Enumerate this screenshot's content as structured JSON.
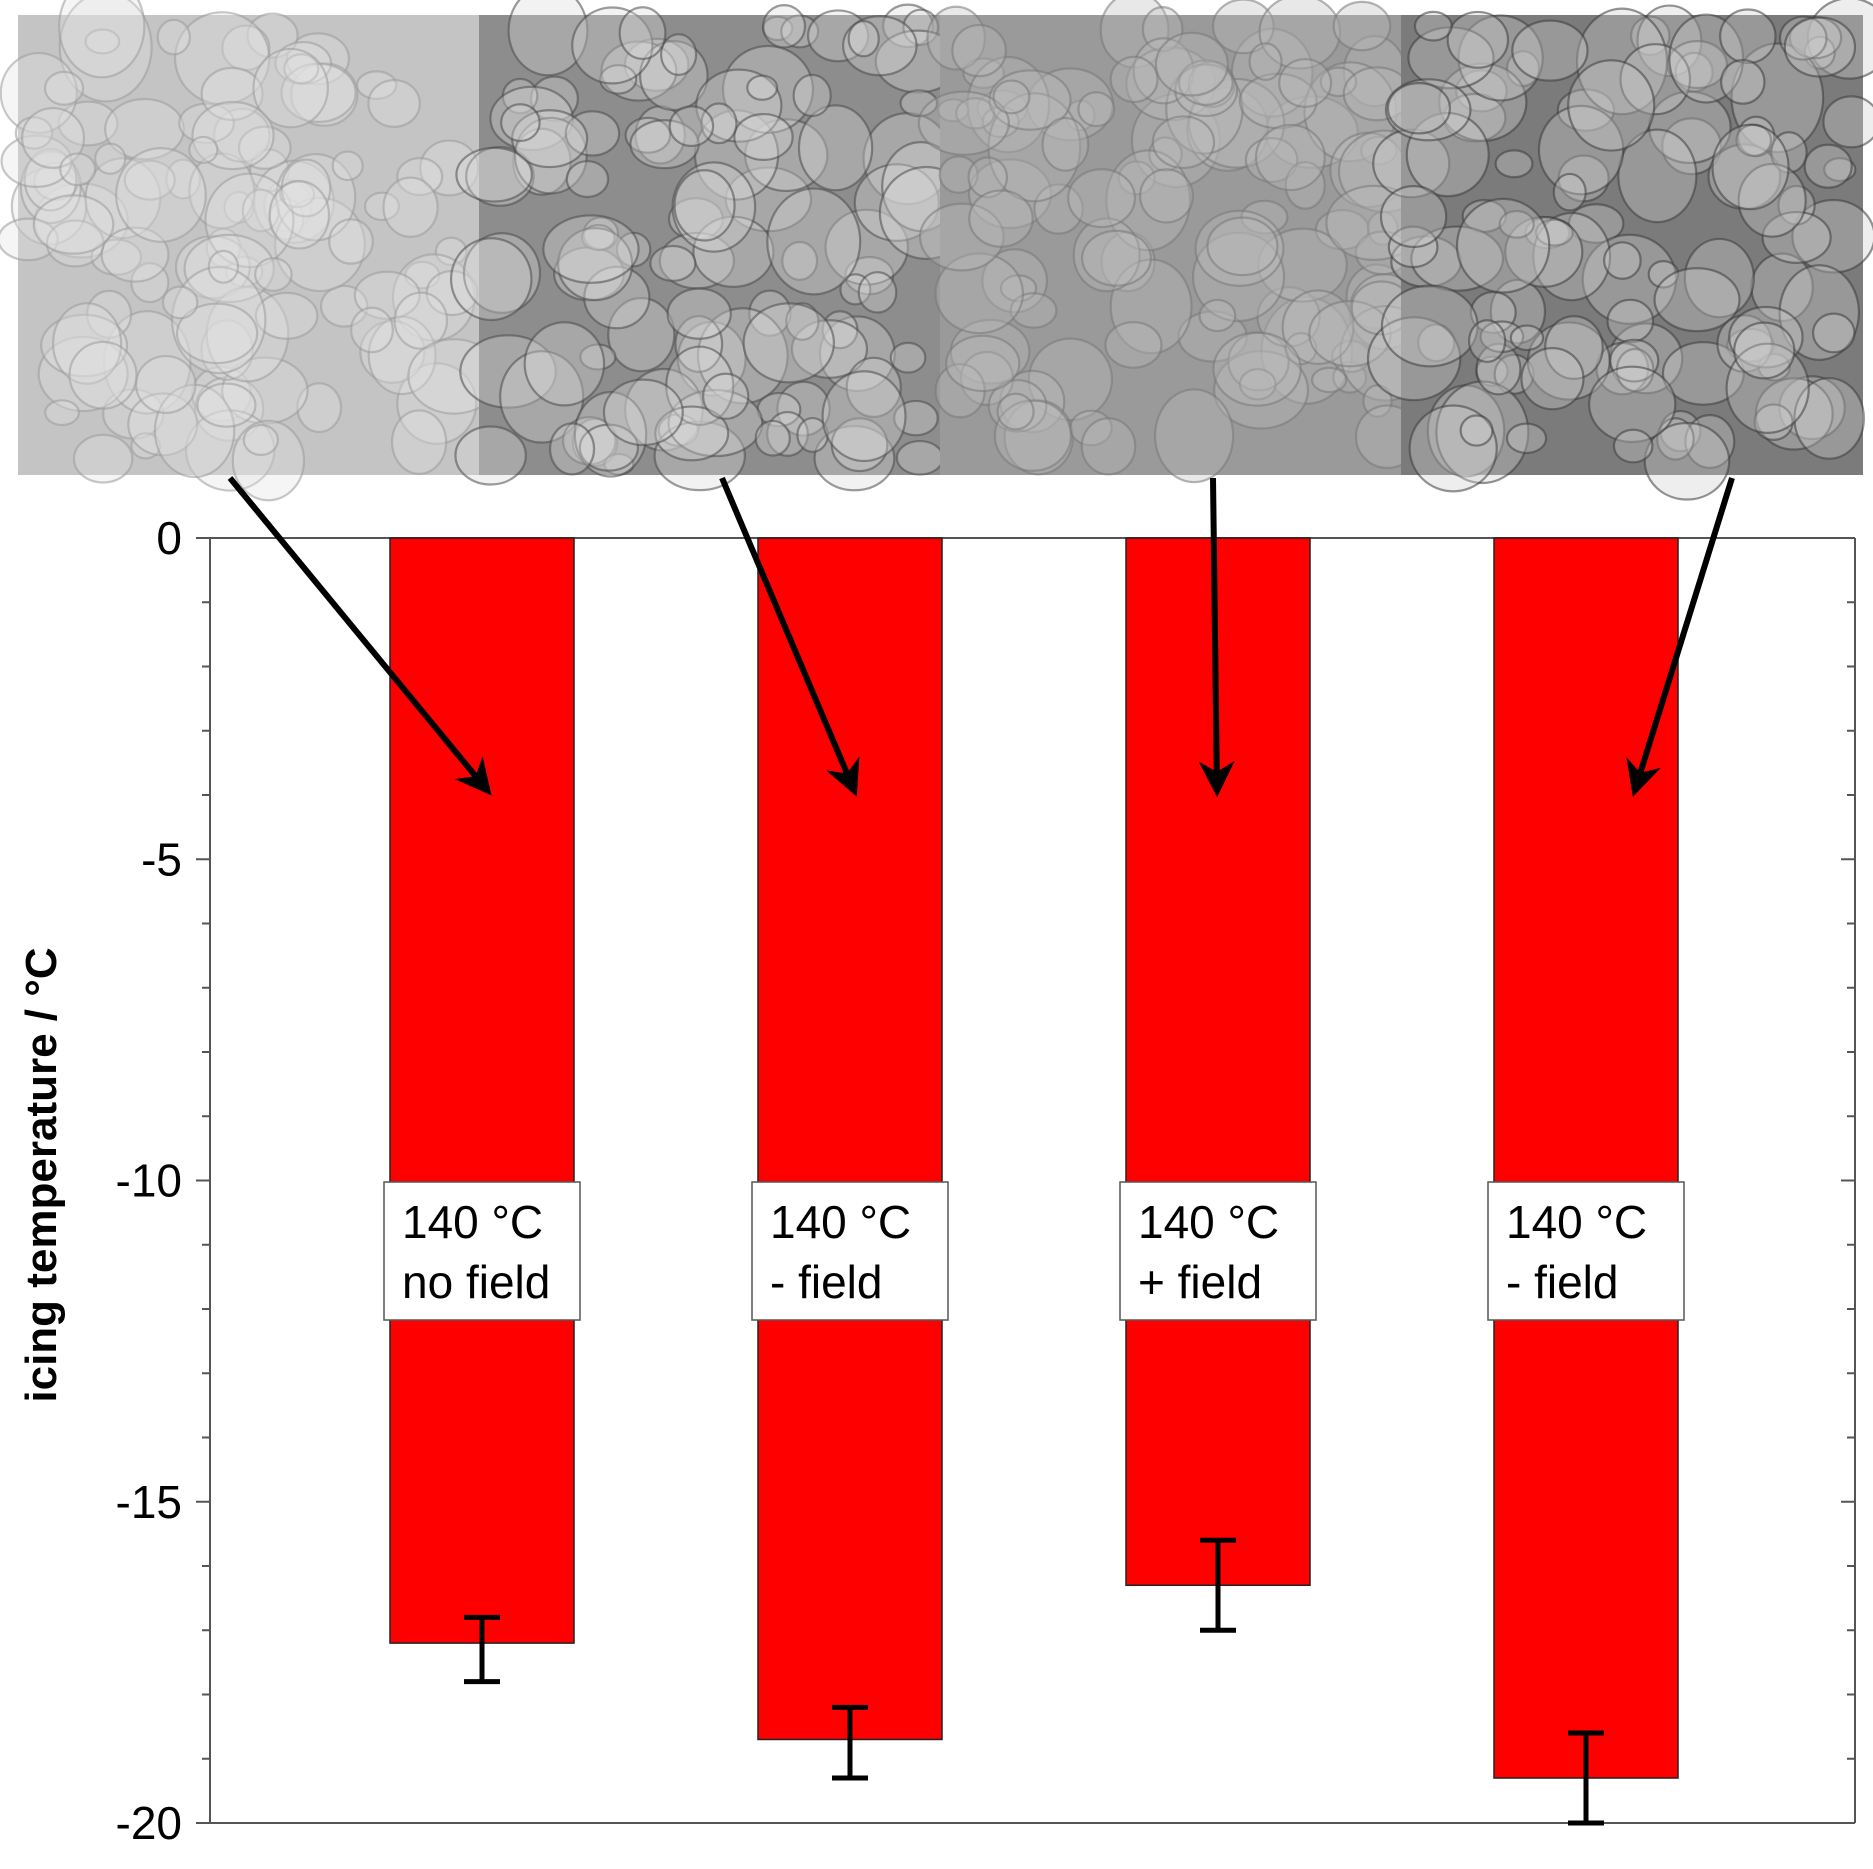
{
  "figure": {
    "micrograph_strip": {
      "panels": [
        {
          "name": "micrograph-140c-no-field",
          "shade": "#c4c4c4",
          "ridge": "#9a9a9a",
          "highlight": "#e2e2e2"
        },
        {
          "name": "micrograph-140c-minus-field-1",
          "shade": "#8d8d8d",
          "ridge": "#4a4a4a",
          "highlight": "#d9d9d9"
        },
        {
          "name": "micrograph-140c-plus-field",
          "shade": "#9a9a9a",
          "ridge": "#787878",
          "highlight": "#bdbdbd"
        },
        {
          "name": "micrograph-140c-minus-field-2",
          "shade": "#7b7b7b",
          "ridge": "#3c3c3c",
          "highlight": "#cfcfcf"
        }
      ]
    },
    "colors": {
      "bar_fill": "#ff0000",
      "bar_stroke": "#222222",
      "axis": "#555555",
      "arrow": "#000000",
      "error_bar": "#000000",
      "label_box_fill": "#ffffff",
      "label_box_stroke": "#555555"
    }
  },
  "chart_data": {
    "type": "bar",
    "title": "",
    "xlabel": "",
    "ylabel": "icing temperature / °C",
    "ylim": [
      -20,
      0
    ],
    "yticks": [
      0,
      -5,
      -10,
      -15,
      -20
    ],
    "yticks_labels": [
      "0",
      "-5",
      "-10",
      "-15",
      "-20"
    ],
    "minor_tick_step": 1,
    "grid": false,
    "categories": [
      [
        "140 °C",
        "no field"
      ],
      [
        "140 °C",
        "- field"
      ],
      [
        "140 °C",
        "+ field"
      ],
      [
        "140 °C",
        "- field"
      ]
    ],
    "values": [
      -17.2,
      -18.7,
      -16.3,
      -19.3
    ],
    "error_low": [
      -17.8,
      -19.3,
      -17.0,
      -20.0
    ],
    "error_high": [
      -16.8,
      -18.2,
      -15.6,
      -18.6
    ]
  }
}
